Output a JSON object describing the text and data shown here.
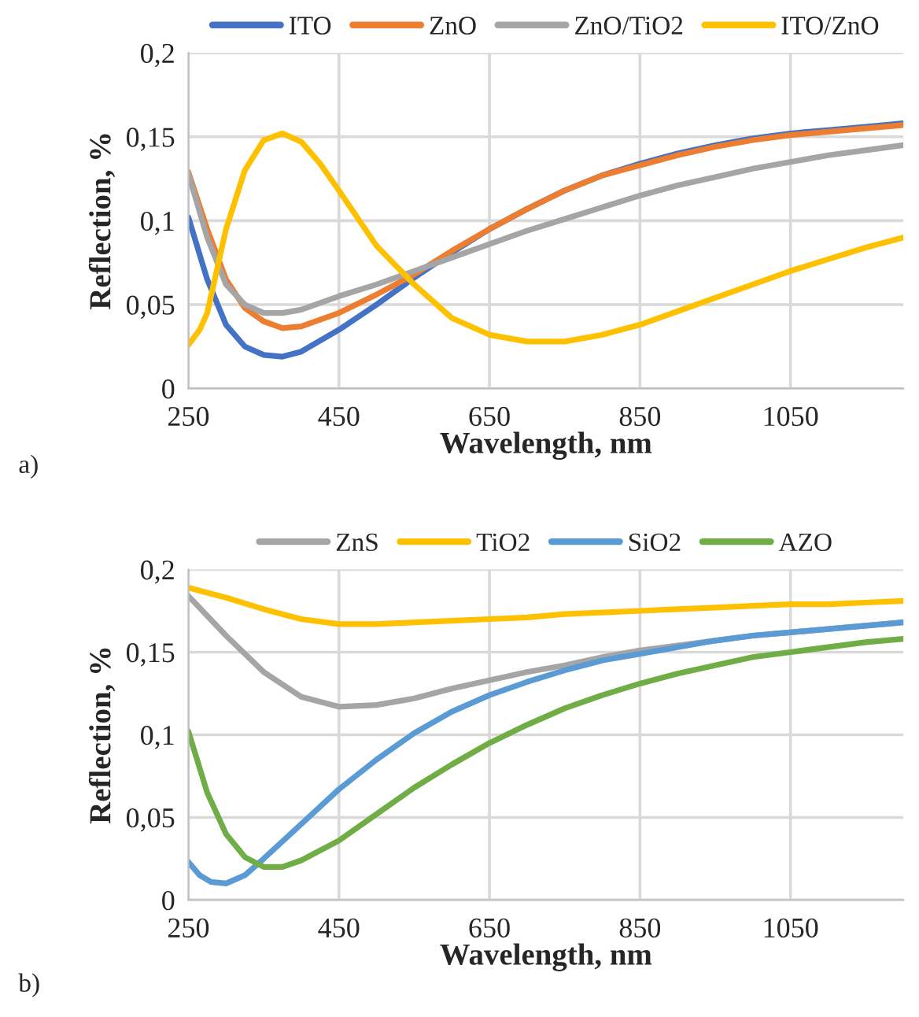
{
  "chart_data": [
    {
      "type": "line",
      "xlabel": "Wavelength, nm",
      "ylabel": "Reflection, %",
      "annotations": [
        "a)"
      ],
      "xlim": [
        250,
        1200
      ],
      "xticks": [
        250,
        450,
        650,
        850,
        1050
      ],
      "ylim": [
        0,
        0.2
      ],
      "yticks": [
        {
          "value": 0,
          "label": "0"
        },
        {
          "value": 0.05,
          "label": "0,05"
        },
        {
          "value": 0.1,
          "label": "0,1"
        },
        {
          "value": 0.15,
          "label": "0,15"
        },
        {
          "value": 0.2,
          "label": "0,2"
        }
      ],
      "grid": true,
      "legend": "top",
      "marker": "none",
      "line_style": "solid",
      "series": [
        {
          "name": "ITO",
          "color": "#4472c4",
          "x": [
            250,
            275,
            300,
            325,
            350,
            375,
            400,
            450,
            500,
            550,
            600,
            650,
            700,
            750,
            800,
            850,
            900,
            950,
            1000,
            1050,
            1100,
            1150,
            1200
          ],
          "values": [
            0.102,
            0.065,
            0.038,
            0.025,
            0.02,
            0.019,
            0.022,
            0.035,
            0.05,
            0.066,
            0.081,
            0.095,
            0.107,
            0.118,
            0.127,
            0.134,
            0.14,
            0.145,
            0.149,
            0.152,
            0.154,
            0.156,
            0.158
          ]
        },
        {
          "name": "ZnO",
          "color": "#ed7d31",
          "x": [
            250,
            275,
            300,
            325,
            350,
            375,
            400,
            450,
            500,
            550,
            600,
            650,
            700,
            750,
            800,
            850,
            900,
            950,
            1000,
            1050,
            1100,
            1150,
            1200
          ],
          "values": [
            0.129,
            0.095,
            0.065,
            0.048,
            0.04,
            0.036,
            0.037,
            0.045,
            0.056,
            0.068,
            0.082,
            0.095,
            0.107,
            0.118,
            0.127,
            0.133,
            0.139,
            0.144,
            0.148,
            0.151,
            0.153,
            0.155,
            0.157
          ]
        },
        {
          "name": "ZnO/TiO2",
          "color": "#a5a5a5",
          "x": [
            250,
            275,
            300,
            325,
            350,
            375,
            400,
            450,
            500,
            550,
            600,
            650,
            700,
            750,
            800,
            850,
            900,
            950,
            1000,
            1050,
            1100,
            1150,
            1200
          ],
          "values": [
            0.128,
            0.09,
            0.062,
            0.05,
            0.045,
            0.045,
            0.047,
            0.055,
            0.062,
            0.07,
            0.078,
            0.086,
            0.094,
            0.101,
            0.108,
            0.115,
            0.121,
            0.126,
            0.131,
            0.135,
            0.139,
            0.142,
            0.145
          ]
        },
        {
          "name": "ITO/ZnO",
          "color": "#ffc000",
          "x": [
            250,
            265,
            275,
            300,
            325,
            350,
            375,
            400,
            425,
            450,
            500,
            550,
            600,
            650,
            700,
            750,
            800,
            850,
            900,
            950,
            1000,
            1050,
            1100,
            1150,
            1200
          ],
          "values": [
            0.026,
            0.035,
            0.045,
            0.095,
            0.13,
            0.148,
            0.152,
            0.147,
            0.134,
            0.118,
            0.085,
            0.062,
            0.042,
            0.032,
            0.028,
            0.028,
            0.032,
            0.038,
            0.046,
            0.054,
            0.062,
            0.07,
            0.077,
            0.084,
            0.09
          ]
        }
      ]
    },
    {
      "type": "line",
      "xlabel": "Wavelength, nm",
      "ylabel": "Reflection, %",
      "annotations": [
        "b)"
      ],
      "xlim": [
        250,
        1200
      ],
      "xticks": [
        250,
        450,
        650,
        850,
        1050
      ],
      "ylim": [
        0,
        0.2
      ],
      "yticks": [
        {
          "value": 0,
          "label": "0"
        },
        {
          "value": 0.05,
          "label": "0,05"
        },
        {
          "value": 0.1,
          "label": "0,1"
        },
        {
          "value": 0.15,
          "label": "0,15"
        },
        {
          "value": 0.2,
          "label": "0,2"
        }
      ],
      "grid": true,
      "legend": "top",
      "marker": "none",
      "line_style": "solid",
      "series": [
        {
          "name": "ZnS",
          "color": "#a5a5a5",
          "x": [
            250,
            300,
            350,
            400,
            450,
            500,
            550,
            600,
            650,
            700,
            750,
            800,
            850,
            900,
            950,
            1000,
            1050,
            1100,
            1150,
            1200
          ],
          "values": [
            0.184,
            0.16,
            0.138,
            0.123,
            0.117,
            0.118,
            0.122,
            0.128,
            0.133,
            0.138,
            0.142,
            0.147,
            0.151,
            0.154,
            0.157,
            0.16,
            0.162,
            0.164,
            0.166,
            0.168
          ]
        },
        {
          "name": "TiO2",
          "color": "#ffc000",
          "x": [
            250,
            300,
            350,
            400,
            450,
            500,
            550,
            600,
            650,
            700,
            750,
            800,
            850,
            900,
            950,
            1000,
            1050,
            1100,
            1150,
            1200
          ],
          "values": [
            0.189,
            0.183,
            0.176,
            0.17,
            0.167,
            0.167,
            0.168,
            0.169,
            0.17,
            0.171,
            0.173,
            0.174,
            0.175,
            0.176,
            0.177,
            0.178,
            0.179,
            0.179,
            0.18,
            0.181
          ]
        },
        {
          "name": "SiO2",
          "color": "#5b9bd5",
          "x": [
            250,
            265,
            280,
            300,
            325,
            350,
            400,
            450,
            500,
            550,
            600,
            650,
            700,
            750,
            800,
            850,
            900,
            950,
            1000,
            1050,
            1100,
            1150,
            1200
          ],
          "values": [
            0.023,
            0.015,
            0.011,
            0.01,
            0.015,
            0.025,
            0.046,
            0.067,
            0.085,
            0.101,
            0.114,
            0.124,
            0.132,
            0.139,
            0.145,
            0.149,
            0.153,
            0.157,
            0.16,
            0.162,
            0.164,
            0.166,
            0.168
          ]
        },
        {
          "name": "AZO",
          "color": "#70ad47",
          "x": [
            250,
            275,
            300,
            325,
            350,
            375,
            400,
            450,
            500,
            550,
            600,
            650,
            700,
            750,
            800,
            850,
            900,
            950,
            1000,
            1050,
            1100,
            1150,
            1200
          ],
          "values": [
            0.102,
            0.065,
            0.04,
            0.026,
            0.02,
            0.02,
            0.024,
            0.036,
            0.052,
            0.068,
            0.082,
            0.095,
            0.106,
            0.116,
            0.124,
            0.131,
            0.137,
            0.142,
            0.147,
            0.15,
            0.153,
            0.156,
            0.158
          ]
        }
      ]
    }
  ]
}
